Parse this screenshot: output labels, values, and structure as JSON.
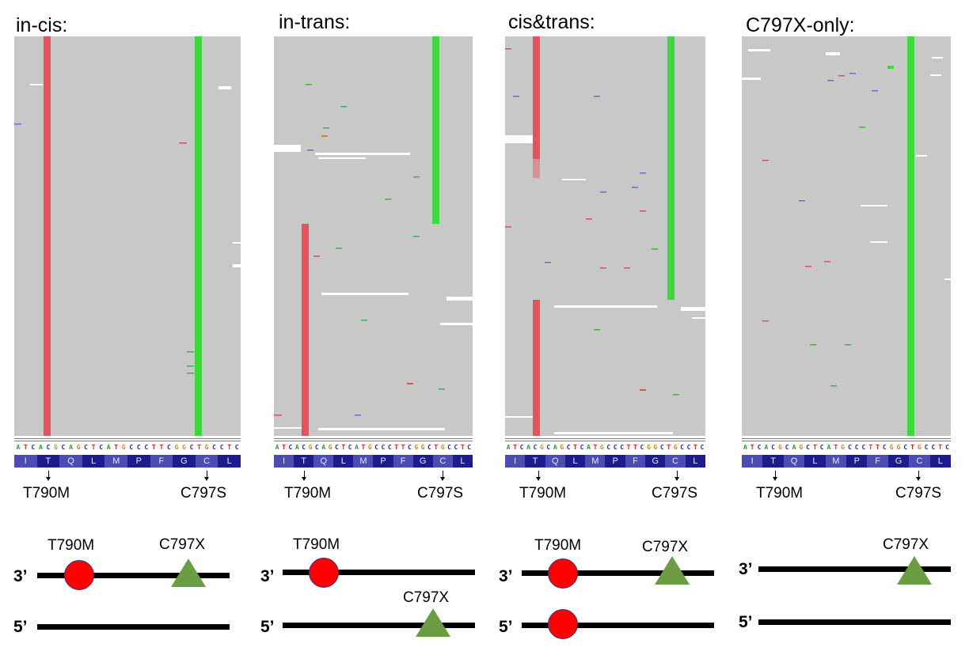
{
  "sequence": "ATCACGCAGCTCATGCCCTTCGGCTGCCTC",
  "amino_acids": [
    "I",
    "T",
    "Q",
    "L",
    "M",
    "P",
    "F",
    "G",
    "C",
    "L"
  ],
  "colors": {
    "A": "#1fa51f",
    "C": "#1f1fd6",
    "G": "#d18b00",
    "T": "#e01f1f",
    "reads_bg": "#c8c8c8",
    "t790m_bar": "#e8505a",
    "c797s_bar": "#3cd83c",
    "circle": "#ff0000",
    "triangle": "#6a9d42"
  },
  "panels": [
    {
      "title": "in-cis:",
      "t790m_label": "T790M",
      "c797s_label": "C797S",
      "diagram": {
        "top_strand_label": "3’",
        "bottom_strand_label": "5’",
        "circle_label": "T790M",
        "triangle_label": "C797X"
      }
    },
    {
      "title": "in-trans:",
      "t790m_label": "T790M",
      "c797s_label": "C797S",
      "diagram": {
        "top_strand_label": "3’",
        "bottom_strand_label": "5’",
        "circle_label": "T790M",
        "triangle_label": "C797X"
      }
    },
    {
      "title": "cis&trans:",
      "t790m_label": "T790M",
      "c797s_label": "C797S",
      "diagram": {
        "top_strand_label": "3’",
        "bottom_strand_label": "5’",
        "circle_label": "T790M",
        "triangle_label": "C797X"
      }
    },
    {
      "title": "C797X-only:",
      "t790m_label": "T790M",
      "c797s_label": "C797S",
      "diagram": {
        "top_strand_label": "3’",
        "bottom_strand_label": "5’",
        "triangle_label": "C797X"
      }
    }
  ]
}
